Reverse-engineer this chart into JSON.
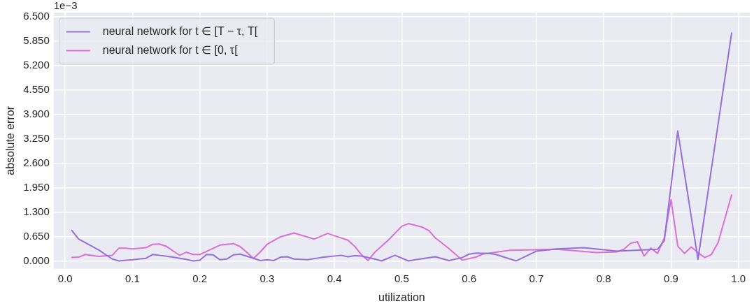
{
  "chart_data": {
    "type": "line",
    "xlabel": "utilization",
    "ylabel": "absolute error",
    "annotations": [
      "1e−3"
    ],
    "xlim": [
      -0.017,
      1.017
    ],
    "ylim": [
      -0.2,
      6.6
    ],
    "xticks": [
      {
        "value": 0,
        "label": "0.0"
      },
      {
        "value": 0.1,
        "label": "0.1"
      },
      {
        "value": 0.2,
        "label": "0.2"
      },
      {
        "value": 0.3,
        "label": "0.3"
      },
      {
        "value": 0.4,
        "label": "0.4"
      },
      {
        "value": 0.5,
        "label": "0.5"
      },
      {
        "value": 0.6,
        "label": "0.6"
      },
      {
        "value": 0.7,
        "label": "0.7"
      },
      {
        "value": 0.8,
        "label": "0.8"
      },
      {
        "value": 0.9,
        "label": "0.9"
      },
      {
        "value": 1,
        "label": "1.0"
      }
    ],
    "yticks": [
      {
        "value": 0,
        "label": "0.000"
      },
      {
        "value": 0.65,
        "label": "0.650"
      },
      {
        "value": 1.3,
        "label": "1.300"
      },
      {
        "value": 1.95,
        "label": "1.950"
      },
      {
        "value": 2.6,
        "label": "2.600"
      },
      {
        "value": 3.25,
        "label": "3.250"
      },
      {
        "value": 3.9,
        "label": "3.900"
      },
      {
        "value": 4.55,
        "label": "4.550"
      },
      {
        "value": 5.2,
        "label": "5.200"
      },
      {
        "value": 5.85,
        "label": "5.850"
      },
      {
        "value": 6.5,
        "label": "6.500"
      }
    ],
    "grid": true,
    "legend": "top left",
    "marker": "none",
    "line_style": "solid",
    "series": [
      {
        "name": "neural network for t ∈ [T − τ, T[",
        "color": "#9370db",
        "x": [
          0.01,
          0.02,
          0.05,
          0.07,
          0.08,
          0.1,
          0.12,
          0.13,
          0.14,
          0.16,
          0.18,
          0.19,
          0.2,
          0.21,
          0.22,
          0.23,
          0.24,
          0.25,
          0.26,
          0.28,
          0.29,
          0.3,
          0.31,
          0.32,
          0.33,
          0.34,
          0.36,
          0.38,
          0.41,
          0.42,
          0.43,
          0.44,
          0.46,
          0.47,
          0.49,
          0.51,
          0.52,
          0.55,
          0.57,
          0.59,
          0.6,
          0.61,
          0.63,
          0.64,
          0.67,
          0.7,
          0.73,
          0.77,
          0.82,
          0.88,
          0.89,
          0.91,
          0.94,
          0.99
        ],
        "values": [
          0.82,
          0.59,
          0.3,
          0.06,
          0.01,
          0.04,
          0.08,
          0.18,
          0.16,
          0.11,
          0.05,
          0.01,
          0.03,
          0.18,
          0.17,
          0.04,
          0.06,
          0.17,
          0.19,
          0.08,
          0.02,
          0.04,
          0.02,
          0.11,
          0.12,
          0.06,
          0.04,
          0.1,
          0.16,
          0.12,
          0.15,
          0.14,
          0.06,
          0.01,
          0.16,
          0.01,
          0.04,
          0.12,
          0.02,
          0.1,
          0.19,
          0.22,
          0.21,
          0.18,
          0.01,
          0.27,
          0.33,
          0.36,
          0.27,
          0.32,
          0.55,
          3.46,
          0.05,
          6.06
        ]
      },
      {
        "name": "neural network for t ∈ [0, τ[",
        "color": "#da70d6",
        "x": [
          0.01,
          0.02,
          0.03,
          0.05,
          0.07,
          0.08,
          0.09,
          0.1,
          0.12,
          0.13,
          0.14,
          0.15,
          0.17,
          0.18,
          0.19,
          0.2,
          0.23,
          0.25,
          0.26,
          0.28,
          0.29,
          0.3,
          0.32,
          0.34,
          0.37,
          0.39,
          0.4,
          0.42,
          0.43,
          0.44,
          0.45,
          0.46,
          0.48,
          0.5,
          0.51,
          0.53,
          0.54,
          0.55,
          0.57,
          0.59,
          0.61,
          0.62,
          0.64,
          0.66,
          0.73,
          0.79,
          0.82,
          0.83,
          0.84,
          0.85,
          0.86,
          0.87,
          0.88,
          0.89,
          0.9,
          0.91,
          0.92,
          0.93,
          0.94,
          0.95,
          0.96,
          0.97,
          0.99
        ],
        "values": [
          0.1,
          0.11,
          0.18,
          0.13,
          0.16,
          0.35,
          0.35,
          0.33,
          0.36,
          0.45,
          0.46,
          0.4,
          0.16,
          0.24,
          0.18,
          0.18,
          0.43,
          0.47,
          0.39,
          0.08,
          0.25,
          0.45,
          0.65,
          0.75,
          0.59,
          0.74,
          0.68,
          0.56,
          0.4,
          0.18,
          0.02,
          0.24,
          0.56,
          0.93,
          1.0,
          0.91,
          0.82,
          0.62,
          0.34,
          0.03,
          0.11,
          0.19,
          0.24,
          0.29,
          0.32,
          0.23,
          0.25,
          0.32,
          0.48,
          0.52,
          0.14,
          0.35,
          0.21,
          0.62,
          1.64,
          0.4,
          0.21,
          0.38,
          0.23,
          0.1,
          0.18,
          0.5,
          1.76
        ]
      }
    ]
  }
}
